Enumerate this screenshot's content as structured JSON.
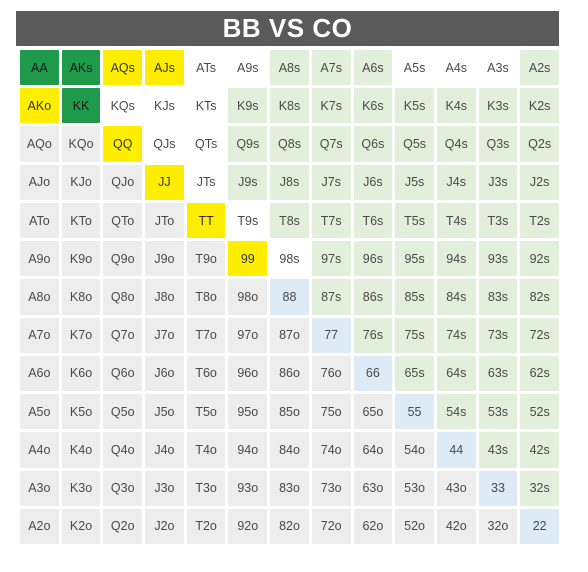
{
  "title": "BB VS CO",
  "legend_colors": {
    "raise": "#1f9a4b",
    "call": "#ffee00",
    "mixed": "#a7a7a7",
    "suited_fold": "#e2efda",
    "pair_fold": "#ddebf7",
    "offsuit_fold": "#ededed"
  },
  "grid": [
    [
      [
        "AA",
        "raise"
      ],
      [
        "AKs",
        "raise"
      ],
      [
        "AQs",
        "call"
      ],
      [
        "AJs",
        "call"
      ],
      [
        "ATs",
        "mixed"
      ],
      [
        "A9s",
        "mixed"
      ],
      [
        "A8s",
        "suited"
      ],
      [
        "A7s",
        "suited"
      ],
      [
        "A6s",
        "suited"
      ],
      [
        "A5s",
        "mixed"
      ],
      [
        "A4s",
        "mixed"
      ],
      [
        "A3s",
        "mixed"
      ],
      [
        "A2s",
        "suited"
      ]
    ],
    [
      [
        "AKo",
        "call"
      ],
      [
        "KK",
        "raise"
      ],
      [
        "KQs",
        "mixed"
      ],
      [
        "KJs",
        "mixed"
      ],
      [
        "KTs",
        "mixed"
      ],
      [
        "K9s",
        "suited"
      ],
      [
        "K8s",
        "suited"
      ],
      [
        "K7s",
        "suited"
      ],
      [
        "K6s",
        "suited"
      ],
      [
        "K5s",
        "suited"
      ],
      [
        "K4s",
        "suited"
      ],
      [
        "K3s",
        "suited"
      ],
      [
        "K2s",
        "suited"
      ]
    ],
    [
      [
        "AQo",
        "off"
      ],
      [
        "KQo",
        "off"
      ],
      [
        "QQ",
        "call"
      ],
      [
        "QJs",
        "mixed"
      ],
      [
        "QTs",
        "mixed"
      ],
      [
        "Q9s",
        "suited"
      ],
      [
        "Q8s",
        "suited"
      ],
      [
        "Q7s",
        "suited"
      ],
      [
        "Q6s",
        "suited"
      ],
      [
        "Q5s",
        "suited"
      ],
      [
        "Q4s",
        "suited"
      ],
      [
        "Q3s",
        "suited"
      ],
      [
        "Q2s",
        "suited"
      ]
    ],
    [
      [
        "AJo",
        "off"
      ],
      [
        "KJo",
        "off"
      ],
      [
        "QJo",
        "off"
      ],
      [
        "JJ",
        "call"
      ],
      [
        "JTs",
        "mixed"
      ],
      [
        "J9s",
        "suited"
      ],
      [
        "J8s",
        "suited"
      ],
      [
        "J7s",
        "suited"
      ],
      [
        "J6s",
        "suited"
      ],
      [
        "J5s",
        "suited"
      ],
      [
        "J4s",
        "suited"
      ],
      [
        "J3s",
        "suited"
      ],
      [
        "J2s",
        "suited"
      ]
    ],
    [
      [
        "ATo",
        "off"
      ],
      [
        "KTo",
        "off"
      ],
      [
        "QTo",
        "off"
      ],
      [
        "JTo",
        "off"
      ],
      [
        "TT",
        "call"
      ],
      [
        "T9s",
        "mixed"
      ],
      [
        "T8s",
        "suited"
      ],
      [
        "T7s",
        "suited"
      ],
      [
        "T6s",
        "suited"
      ],
      [
        "T5s",
        "suited"
      ],
      [
        "T4s",
        "suited"
      ],
      [
        "T3s",
        "suited"
      ],
      [
        "T2s",
        "suited"
      ]
    ],
    [
      [
        "A9o",
        "off"
      ],
      [
        "K9o",
        "off"
      ],
      [
        "Q9o",
        "off"
      ],
      [
        "J9o",
        "off"
      ],
      [
        "T9o",
        "off"
      ],
      [
        "99",
        "call"
      ],
      [
        "98s",
        "mixed"
      ],
      [
        "97s",
        "suited"
      ],
      [
        "96s",
        "suited"
      ],
      [
        "95s",
        "suited"
      ],
      [
        "94s",
        "suited"
      ],
      [
        "93s",
        "suited"
      ],
      [
        "92s",
        "suited"
      ]
    ],
    [
      [
        "A8o",
        "off"
      ],
      [
        "K8o",
        "off"
      ],
      [
        "Q8o",
        "off"
      ],
      [
        "J8o",
        "off"
      ],
      [
        "T8o",
        "off"
      ],
      [
        "98o",
        "off"
      ],
      [
        "88",
        "pair"
      ],
      [
        "87s",
        "suited"
      ],
      [
        "86s",
        "suited"
      ],
      [
        "85s",
        "suited"
      ],
      [
        "84s",
        "suited"
      ],
      [
        "83s",
        "suited"
      ],
      [
        "82s",
        "suited"
      ]
    ],
    [
      [
        "A7o",
        "off"
      ],
      [
        "K7o",
        "off"
      ],
      [
        "Q7o",
        "off"
      ],
      [
        "J7o",
        "off"
      ],
      [
        "T7o",
        "off"
      ],
      [
        "97o",
        "off"
      ],
      [
        "87o",
        "off"
      ],
      [
        "77",
        "pair"
      ],
      [
        "76s",
        "suited"
      ],
      [
        "75s",
        "suited"
      ],
      [
        "74s",
        "suited"
      ],
      [
        "73s",
        "suited"
      ],
      [
        "72s",
        "suited"
      ]
    ],
    [
      [
        "A6o",
        "off"
      ],
      [
        "K6o",
        "off"
      ],
      [
        "Q6o",
        "off"
      ],
      [
        "J6o",
        "off"
      ],
      [
        "T6o",
        "off"
      ],
      [
        "96o",
        "off"
      ],
      [
        "86o",
        "off"
      ],
      [
        "76o",
        "off"
      ],
      [
        "66",
        "pair"
      ],
      [
        "65s",
        "suited"
      ],
      [
        "64s",
        "suited"
      ],
      [
        "63s",
        "suited"
      ],
      [
        "62s",
        "suited"
      ]
    ],
    [
      [
        "A5o",
        "off"
      ],
      [
        "K5o",
        "off"
      ],
      [
        "Q5o",
        "off"
      ],
      [
        "J5o",
        "off"
      ],
      [
        "T5o",
        "off"
      ],
      [
        "95o",
        "off"
      ],
      [
        "85o",
        "off"
      ],
      [
        "75o",
        "off"
      ],
      [
        "65o",
        "off"
      ],
      [
        "55",
        "pair"
      ],
      [
        "54s",
        "suited"
      ],
      [
        "53s",
        "suited"
      ],
      [
        "52s",
        "suited"
      ]
    ],
    [
      [
        "A4o",
        "off"
      ],
      [
        "K4o",
        "off"
      ],
      [
        "Q4o",
        "off"
      ],
      [
        "J4o",
        "off"
      ],
      [
        "T4o",
        "off"
      ],
      [
        "94o",
        "off"
      ],
      [
        "84o",
        "off"
      ],
      [
        "74o",
        "off"
      ],
      [
        "64o",
        "off"
      ],
      [
        "54o",
        "off"
      ],
      [
        "44",
        "pair"
      ],
      [
        "43s",
        "suited"
      ],
      [
        "42s",
        "suited"
      ]
    ],
    [
      [
        "A3o",
        "off"
      ],
      [
        "K3o",
        "off"
      ],
      [
        "Q3o",
        "off"
      ],
      [
        "J3o",
        "off"
      ],
      [
        "T3o",
        "off"
      ],
      [
        "93o",
        "off"
      ],
      [
        "83o",
        "off"
      ],
      [
        "73o",
        "off"
      ],
      [
        "63o",
        "off"
      ],
      [
        "53o",
        "off"
      ],
      [
        "43o",
        "off"
      ],
      [
        "33",
        "pair"
      ],
      [
        "32s",
        "suited"
      ]
    ],
    [
      [
        "A2o",
        "off"
      ],
      [
        "K2o",
        "off"
      ],
      [
        "Q2o",
        "off"
      ],
      [
        "J2o",
        "off"
      ],
      [
        "T2o",
        "off"
      ],
      [
        "92o",
        "off"
      ],
      [
        "82o",
        "off"
      ],
      [
        "72o",
        "off"
      ],
      [
        "62o",
        "off"
      ],
      [
        "52o",
        "off"
      ],
      [
        "42o",
        "off"
      ],
      [
        "32o",
        "off"
      ],
      [
        "22",
        "pair"
      ]
    ]
  ]
}
